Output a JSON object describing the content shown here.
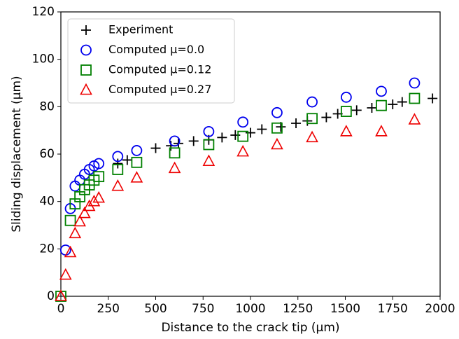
{
  "chart_data": {
    "type": "scatter",
    "xlabel": "Distance to the crack tip (µm)",
    "ylabel": "Sliding displacement (µm)",
    "xlim": [
      0,
      2000
    ],
    "ylim": [
      0,
      120
    ],
    "xticks": [
      0,
      250,
      500,
      750,
      1000,
      1250,
      1500,
      1750,
      2000
    ],
    "yticks": [
      0,
      20,
      40,
      60,
      80,
      100,
      120
    ],
    "grid": false,
    "legend": "upper left",
    "series": [
      {
        "name": "Experiment",
        "color": "#000000",
        "marker": "plus",
        "x": [
          300,
          350,
          500,
          580,
          620,
          700,
          780,
          850,
          920,
          1000,
          1060,
          1160,
          1240,
          1300,
          1400,
          1460,
          1560,
          1640,
          1750,
          1800,
          1960
        ],
        "values": [
          56,
          57.5,
          62.5,
          63.5,
          64.5,
          65.5,
          66,
          67,
          68,
          69,
          70.5,
          71.5,
          73,
          74,
          75.5,
          77,
          78.5,
          79.5,
          81,
          82,
          83.5
        ]
      },
      {
        "name": "Computed μ=0.0",
        "color": "#0000ee",
        "marker": "circle",
        "x": [
          25,
          50,
          75,
          100,
          125,
          150,
          175,
          200,
          300,
          400,
          600,
          780,
          960,
          1140,
          1325,
          1505,
          1690,
          1865
        ],
        "values": [
          19.5,
          37,
          46.5,
          49,
          51.5,
          53.5,
          55,
          56,
          59,
          61.5,
          65.5,
          69.5,
          73.5,
          77.5,
          82,
          84,
          86.5,
          90
        ]
      },
      {
        "name": "Computed μ=0.12",
        "color": "#008000",
        "marker": "square",
        "x": [
          0,
          50,
          75,
          100,
          125,
          150,
          175,
          200,
          300,
          400,
          600,
          780,
          960,
          1140,
          1325,
          1505,
          1690,
          1865
        ],
        "values": [
          0,
          32,
          39,
          42,
          45,
          47,
          49,
          50.5,
          53.5,
          56.5,
          60.5,
          64,
          67.5,
          71,
          75,
          78,
          80.5,
          83.5
        ]
      },
      {
        "name": "Computed μ=0.27",
        "color": "#ee0000",
        "marker": "triangle",
        "x": [
          0,
          25,
          50,
          75,
          100,
          125,
          150,
          175,
          200,
          300,
          400,
          600,
          780,
          960,
          1140,
          1325,
          1505,
          1690,
          1865
        ],
        "values": [
          0,
          9,
          18.5,
          26.5,
          31.5,
          35,
          38,
          40,
          41.5,
          46.5,
          50,
          54,
          57,
          61,
          64,
          67,
          69.5,
          69.5,
          74.5
        ]
      }
    ]
  }
}
